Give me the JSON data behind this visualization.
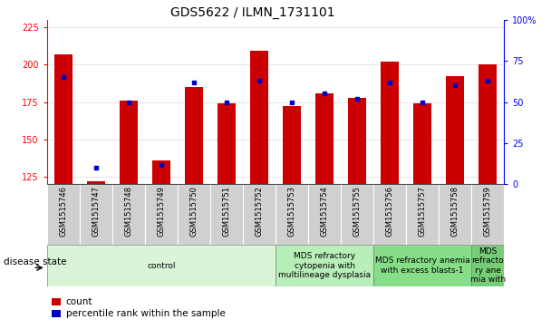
{
  "title": "GDS5622 / ILMN_1731101",
  "samples": [
    "GSM1515746",
    "GSM1515747",
    "GSM1515748",
    "GSM1515749",
    "GSM1515750",
    "GSM1515751",
    "GSM1515752",
    "GSM1515753",
    "GSM1515754",
    "GSM1515755",
    "GSM1515756",
    "GSM1515757",
    "GSM1515758",
    "GSM1515759"
  ],
  "counts": [
    207,
    122,
    176,
    136,
    185,
    174,
    209,
    172,
    181,
    178,
    202,
    174,
    192,
    200
  ],
  "percentile_ranks": [
    65,
    10,
    50,
    12,
    62,
    50,
    63,
    50,
    55,
    52,
    62,
    50,
    60,
    63
  ],
  "ylim_left": [
    120,
    230
  ],
  "ylim_right": [
    0,
    100
  ],
  "yticks_left": [
    125,
    150,
    175,
    200,
    225
  ],
  "yticks_right": [
    0,
    25,
    50,
    75,
    100
  ],
  "bar_color": "#cc0000",
  "percentile_color": "#0000cc",
  "bar_width": 0.55,
  "disease_groups": [
    {
      "label": "control",
      "start": 0,
      "end": 7,
      "color": "#d8f5d8"
    },
    {
      "label": "MDS refractory\ncytopenia with\nmultilineage dysplasia",
      "start": 7,
      "end": 10,
      "color": "#b8eeb8"
    },
    {
      "label": "MDS refractory anemia\nwith excess blasts-1",
      "start": 10,
      "end": 13,
      "color": "#88dd88"
    },
    {
      "label": "MDS\nrefracto\nry ane\nmia with",
      "start": 13,
      "end": 14,
      "color": "#77cc77"
    }
  ],
  "disease_label": "disease state",
  "legend_count_label": "count",
  "legend_percentile_label": "percentile rank within the sample",
  "grid_color": "#888888",
  "sample_box_color": "#d0d0d0",
  "title_fontsize": 10,
  "tick_fontsize": 7,
  "label_fontsize": 7.5,
  "sample_fontsize": 6,
  "disease_fontsize": 6.5
}
